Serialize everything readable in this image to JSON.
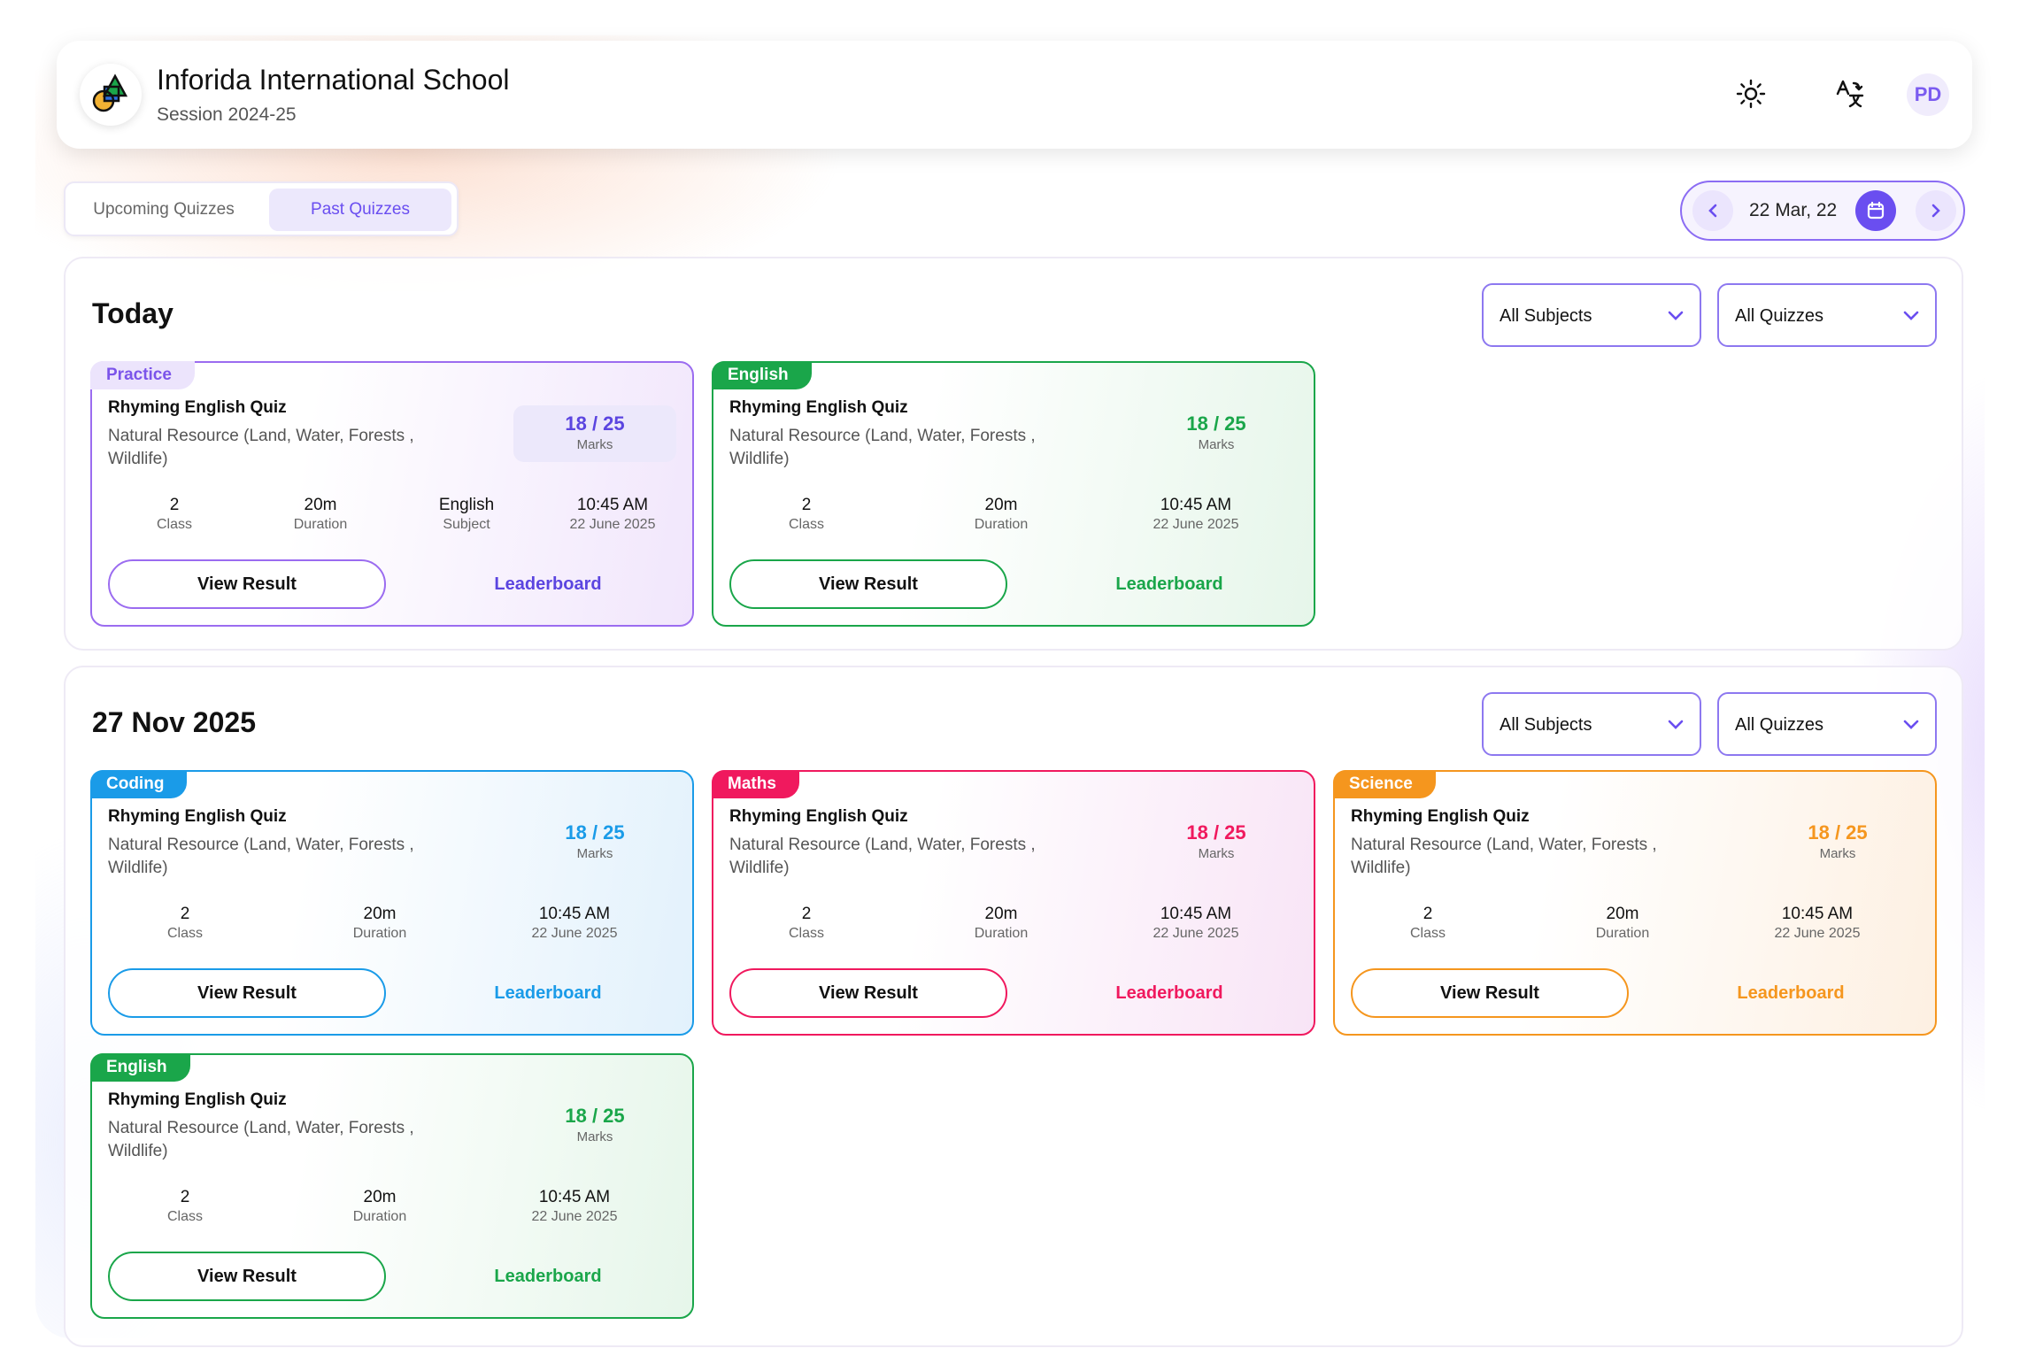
{
  "header": {
    "school_name": "Inforida International School",
    "session": "Session 2024-25",
    "avatar_initials": "PD",
    "icons": [
      "sun-icon",
      "translate-icon"
    ]
  },
  "tabs": [
    {
      "label": "Upcoming Quizzes",
      "active": false
    },
    {
      "label": "Past Quizzes",
      "active": true
    }
  ],
  "datepicker": {
    "value": "22 Mar, 22"
  },
  "filters": {
    "subjects": "All Subjects",
    "quizzes": "All Quizzes"
  },
  "sections": [
    {
      "title": "Today",
      "cards": [
        {
          "tag": "Practice",
          "title": "Rhyming English Quiz",
          "desc": "Natural Resource (Land, Water, Forests , Wildlife)",
          "marks": "18 / 25",
          "marks_label": "Marks",
          "stats": [
            {
              "value": "2",
              "label": "Class"
            },
            {
              "value": "20m",
              "label": "Duration"
            },
            {
              "value": "English",
              "label": "Subject"
            },
            {
              "value": "10:45 AM",
              "label": "22 June 2025"
            }
          ],
          "btn_result": "View Result",
          "btn_leader": "Leaderboard",
          "color": "#9b6cf0"
        },
        {
          "tag": "English",
          "title": "Rhyming English Quiz",
          "desc": "Natural Resource (Land, Water, Forests , Wildlife)",
          "marks": "18 / 25",
          "marks_label": "Marks",
          "stats": [
            {
              "value": "2",
              "label": "Class"
            },
            {
              "value": "20m",
              "label": "Duration"
            },
            {
              "value": "10:45 AM",
              "label": "22 June 2025"
            }
          ],
          "btn_result": "View Result",
          "btn_leader": "Leaderboard",
          "color": "#1aa64a"
        }
      ]
    },
    {
      "title": "27 Nov 2025",
      "cards": [
        {
          "tag": "Coding",
          "title": "Rhyming English Quiz",
          "desc": "Natural Resource (Land, Water, Forests , Wildlife)",
          "marks": "18 / 25",
          "marks_label": "Marks",
          "stats": [
            {
              "value": "2",
              "label": "Class"
            },
            {
              "value": "20m",
              "label": "Duration"
            },
            {
              "value": "10:45 AM",
              "label": "22 June 2025"
            }
          ],
          "btn_result": "View Result",
          "btn_leader": "Leaderboard",
          "color": "#1a9be8"
        },
        {
          "tag": "Maths",
          "title": "Rhyming English Quiz",
          "desc": "Natural Resource (Land, Water, Forests , Wildlife)",
          "marks": "18 / 25",
          "marks_label": "Marks",
          "stats": [
            {
              "value": "2",
              "label": "Class"
            },
            {
              "value": "20m",
              "label": "Duration"
            },
            {
              "value": "10:45 AM",
              "label": "22 June 2025"
            }
          ],
          "btn_result": "View Result",
          "btn_leader": "Leaderboard",
          "color": "#f0195e"
        },
        {
          "tag": "Science",
          "title": "Rhyming English Quiz",
          "desc": "Natural Resource (Land, Water, Forests , Wildlife)",
          "marks": "18 / 25",
          "marks_label": "Marks",
          "stats": [
            {
              "value": "2",
              "label": "Class"
            },
            {
              "value": "20m",
              "label": "Duration"
            },
            {
              "value": "10:45 AM",
              "label": "22 June 2025"
            }
          ],
          "btn_result": "View Result",
          "btn_leader": "Leaderboard",
          "color": "#f5961e"
        },
        {
          "tag": "English",
          "title": "Rhyming English Quiz",
          "desc": "Natural Resource (Land, Water, Forests , Wildlife)",
          "marks": "18 / 25",
          "marks_label": "Marks",
          "stats": [
            {
              "value": "2",
              "label": "Class"
            },
            {
              "value": "20m",
              "label": "Duration"
            },
            {
              "value": "10:45 AM",
              "label": "22 June 2025"
            }
          ],
          "btn_result": "View Result",
          "btn_leader": "Leaderboard",
          "color": "#1aa64a"
        }
      ]
    }
  ]
}
